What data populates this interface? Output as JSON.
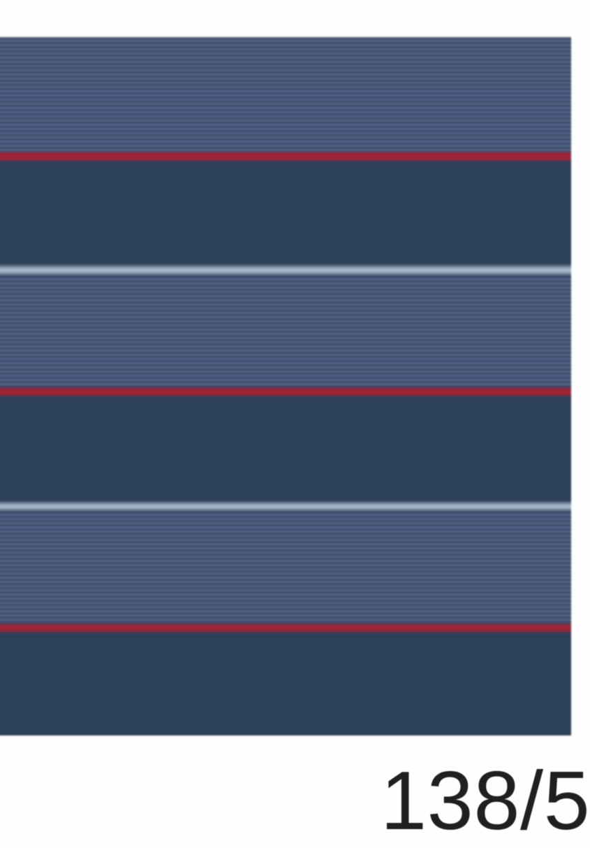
{
  "swatch": {
    "type": "striped-fabric",
    "orientation": "horizontal-stripes",
    "colors": {
      "white": "#fefefe",
      "navy": "#2d4059",
      "red": "#9d2336",
      "lightblue": "#a4b7c9",
      "pin_light": "#54658a",
      "pin_dark": "#3b4b6a",
      "gray_edge": "#66707f",
      "red_edge_top": "#4c4566",
      "red_edge_bottom": "#333d57",
      "label_color": "#202020"
    },
    "bands": [
      {
        "name": "top-white-margin",
        "type": "white",
        "height": 52
      },
      {
        "name": "top-edge-line",
        "type": "grayline",
        "height": 3
      },
      {
        "name": "pinstripe-block-1",
        "type": "pinstripe",
        "height": 161
      },
      {
        "name": "red-stripe-1",
        "type": "red",
        "height": 16
      },
      {
        "name": "navy-block-1",
        "type": "navy",
        "height": 145
      },
      {
        "name": "lightblue-stripe-1",
        "type": "lightblue",
        "height": 19
      },
      {
        "name": "pinstripe-block-2",
        "type": "pinstripe",
        "height": 157
      },
      {
        "name": "red-stripe-2",
        "type": "red",
        "height": 15
      },
      {
        "name": "navy-block-2",
        "type": "navy",
        "height": 148
      },
      {
        "name": "lightblue-stripe-2",
        "type": "lightblue",
        "height": 17
      },
      {
        "name": "pinstripe-block-3",
        "type": "pinstripe",
        "height": 158
      },
      {
        "name": "red-stripe-3",
        "type": "red",
        "height": 15
      },
      {
        "name": "navy-block-3",
        "type": "navy",
        "height": 146
      },
      {
        "name": "bottom-white-margin",
        "type": "white",
        "height": 161
      }
    ]
  },
  "label": {
    "text": "138/5"
  }
}
